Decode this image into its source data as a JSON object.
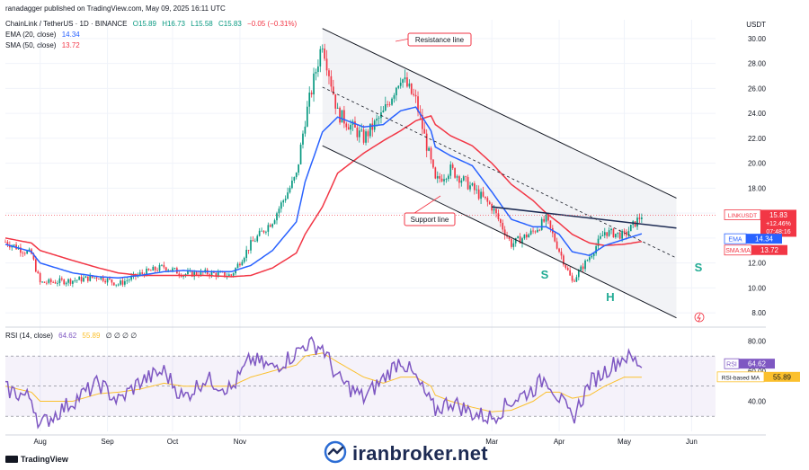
{
  "header": {
    "publisher_line": "ranadagger published on TradingView.com, May 09, 2025 16:11 UTC",
    "symbol_line": "ChainLink / TetherUS · 1D · BINANCE",
    "ohlc": {
      "o_label": "O",
      "o": "15.89",
      "h_label": "H",
      "h": "16.73",
      "l_label": "L",
      "l": "15.58",
      "c_label": "C",
      "c": "15.83",
      "change": "−0.05 (−0.31%)"
    },
    "ema_legend": {
      "label": "EMA (20, close)",
      "value": "14.34"
    },
    "sma_legend": {
      "label": "SMA (50, close)",
      "value": "13.72"
    },
    "rsi_legend": {
      "label": "RSI (14, close)",
      "value": "64.62",
      "value2": "55.89",
      "rest": "∅ ∅ ∅ ∅"
    }
  },
  "price_axis": {
    "currency": "USDT",
    "ticks": [
      "30.00",
      "28.00",
      "26.00",
      "24.00",
      "22.00",
      "20.00",
      "18.00",
      "16.00",
      "14.00",
      "12.00",
      "10.00",
      "8.00"
    ]
  },
  "rsi_axis": {
    "ticks": [
      "80.00",
      "60.00",
      "40.00"
    ]
  },
  "time_axis": {
    "labels": [
      "Aug",
      "Sep",
      "Oct",
      "Nov",
      "Mar",
      "Apr",
      "May",
      "Jun"
    ]
  },
  "badges": {
    "symbol": "LINKUSDT",
    "price": "15.83",
    "change": "+12.46%",
    "countdown": "07:48:16",
    "ema_label": "EMA",
    "ema_value": "14.34",
    "sma_label": "SMA:MA",
    "sma_value": "13.72",
    "rsi_label": "RSI",
    "rsi_value": "64.62",
    "rsi_ma_label": "RSI-based MA",
    "rsi_ma_value": "55.89"
  },
  "annotations": {
    "resistance": "Resistance line",
    "support": "Support line",
    "s_left": "S",
    "head": "H",
    "s_right": "S"
  },
  "footer": {
    "brand": "TradingView",
    "watermark": "iranbroker.net"
  },
  "colors": {
    "up": "#089981",
    "down": "#f23645",
    "ema": "#2962ff",
    "sma": "#f23645",
    "rsi": "#7e57c2",
    "rsi_ma": "#fbc02d",
    "channel": "#131722",
    "pattern_letters": "#22ab94",
    "annotation_border": "#f23645"
  },
  "chart_data": {
    "type": "candlestick",
    "x": [
      "2024-07-20",
      "2024-08-01",
      "2024-08-05",
      "2024-08-20",
      "2024-09-01",
      "2024-09-10",
      "2024-09-20",
      "2024-10-01",
      "2024-10-10",
      "2024-10-20",
      "2024-11-01",
      "2024-11-10",
      "2024-11-20",
      "2024-12-01",
      "2024-12-05",
      "2024-12-13",
      "2024-12-20",
      "2025-01-01",
      "2025-01-10",
      "2025-01-18",
      "2025-01-25",
      "2025-02-01",
      "2025-02-03",
      "2025-02-10",
      "2025-02-20",
      "2025-03-01",
      "2025-03-10",
      "2025-03-20",
      "2025-03-26",
      "2025-04-01",
      "2025-04-07",
      "2025-04-15",
      "2025-04-22",
      "2025-05-01",
      "2025-05-09"
    ],
    "close": [
      13.7,
      12.7,
      10.4,
      10.6,
      10.9,
      10.3,
      11.1,
      11.7,
      11.1,
      11.2,
      11.0,
      13.5,
      15.4,
      19.0,
      23.5,
      29.8,
      24.0,
      22.0,
      24.0,
      27.0,
      25.0,
      20.0,
      18.5,
      19.5,
      18.0,
      16.5,
      13.5,
      14.5,
      15.5,
      13.0,
      10.5,
      12.5,
      14.5,
      14.2,
      15.83
    ],
    "series": [
      {
        "name": "EMA (20, close)",
        "values": [
          13.5,
          12.9,
          12.0,
          11.2,
          10.9,
          10.8,
          11.0,
          11.3,
          11.4,
          11.3,
          11.3,
          11.8,
          13.0,
          15.3,
          18.5,
          22.5,
          23.7,
          22.9,
          23.1,
          24.2,
          24.5,
          22.6,
          21.3,
          20.6,
          19.8,
          17.7,
          15.5,
          14.9,
          14.9,
          14.3,
          12.9,
          12.6,
          13.4,
          13.9,
          14.34
        ]
      },
      {
        "name": "SMA (50, close)",
        "values": [
          14.0,
          13.6,
          13.0,
          12.2,
          11.6,
          11.2,
          11.0,
          11.0,
          11.0,
          11.0,
          10.9,
          11.0,
          11.6,
          12.8,
          14.3,
          16.5,
          19.2,
          20.8,
          21.8,
          22.6,
          23.4,
          23.8,
          23.1,
          22.2,
          21.4,
          20.0,
          18.3,
          17.0,
          16.0,
          15.2,
          14.3,
          13.6,
          13.4,
          13.5,
          13.72
        ]
      }
    ],
    "rsi": {
      "name": "RSI (14, close)",
      "values": [
        48,
        42,
        24,
        40,
        52,
        40,
        53,
        60,
        42,
        55,
        48,
        68,
        62,
        72,
        78,
        76,
        55,
        42,
        55,
        68,
        55,
        38,
        34,
        40,
        32,
        29,
        40,
        48,
        56,
        42,
        28,
        52,
        60,
        70,
        64.62
      ],
      "ma_name": "RSI-based MA",
      "ma_values": [
        50,
        46,
        40,
        40,
        45,
        46,
        48,
        52,
        50,
        50,
        50,
        56,
        60,
        64,
        70,
        72,
        66,
        56,
        52,
        56,
        56,
        50,
        44,
        40,
        36,
        33,
        34,
        40,
        46,
        46,
        42,
        44,
        50,
        56,
        55.89
      ],
      "upper_band": 70,
      "lower_band": 30,
      "ylim": [
        20,
        88
      ]
    },
    "trendlines": [
      {
        "name": "Resistance line",
        "points": [
          [
            "2024-12-13",
            30.8
          ],
          [
            "2025-05-25",
            17.2
          ]
        ]
      },
      {
        "name": "Support line",
        "points": [
          [
            "2024-12-13",
            21.4
          ],
          [
            "2025-05-25",
            7.6
          ]
        ]
      },
      {
        "name": "neckline",
        "points": [
          [
            "2025-03-01",
            16.5
          ],
          [
            "2025-05-25",
            14.8
          ]
        ]
      }
    ],
    "pattern": "Inverse Head and Shoulders",
    "ylim": [
      7,
      31.5
    ],
    "yscale": "linear"
  }
}
